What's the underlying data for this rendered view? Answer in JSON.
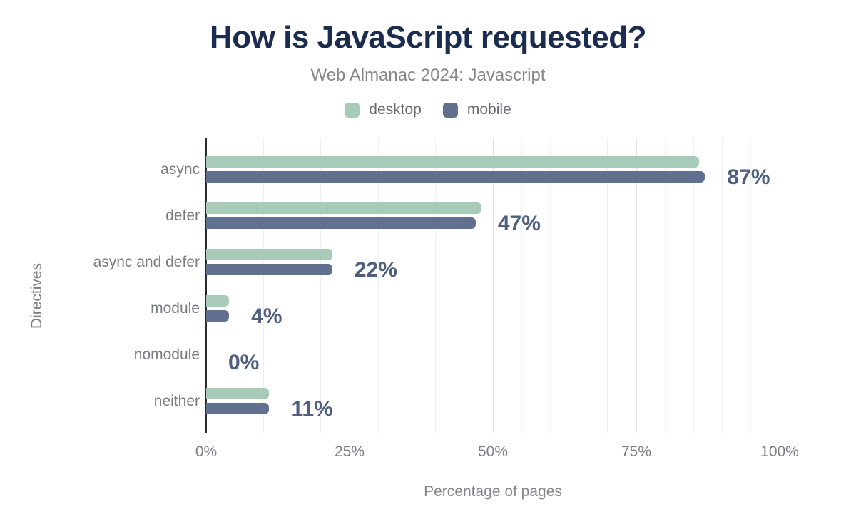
{
  "title": "How is JavaScript requested?",
  "subtitle": "Web Almanac 2024: Javascript",
  "legend": [
    {
      "label": "desktop",
      "color": "#a7cbb8"
    },
    {
      "label": "mobile",
      "color": "#60708e"
    }
  ],
  "colors": {
    "title": "#1b2c4e",
    "subtitle": "#85878b",
    "desktop_bar": "#a7cbb8",
    "mobile_bar": "#60708e",
    "value_label": "#4e5f80",
    "axis_text": "#7b7e82",
    "axis_line": "#2b2b2b",
    "grid_minor": "#f0f0f1",
    "grid_major": "#e2e3e6",
    "background": "#ffffff"
  },
  "chart_data": {
    "type": "bar",
    "orientation": "horizontal",
    "title": "How is JavaScript requested?",
    "subtitle": "Web Almanac 2024: Javascript",
    "categories": [
      "async",
      "defer",
      "async and defer",
      "module",
      "nomodule",
      "neither"
    ],
    "series": [
      {
        "name": "desktop",
        "color": "#a7cbb8",
        "values": [
          86,
          48,
          22,
          4,
          0,
          11
        ]
      },
      {
        "name": "mobile",
        "color": "#60708e",
        "values": [
          87,
          47,
          22,
          4,
          0,
          11
        ]
      }
    ],
    "value_labels": [
      "87%",
      "47%",
      "22%",
      "4%",
      "0%",
      "11%"
    ],
    "xlabel": "Percentage of pages",
    "ylabel": "Directives",
    "xlim": [
      0,
      100
    ],
    "x_ticks": [
      {
        "value": 0,
        "label": "0%"
      },
      {
        "value": 25,
        "label": "25%"
      },
      {
        "value": 50,
        "label": "50%"
      },
      {
        "value": 75,
        "label": "75%"
      },
      {
        "value": 100,
        "label": "100%"
      }
    ],
    "grid": "vertical minor every 5%, major every 25%",
    "legend_position": "top"
  }
}
